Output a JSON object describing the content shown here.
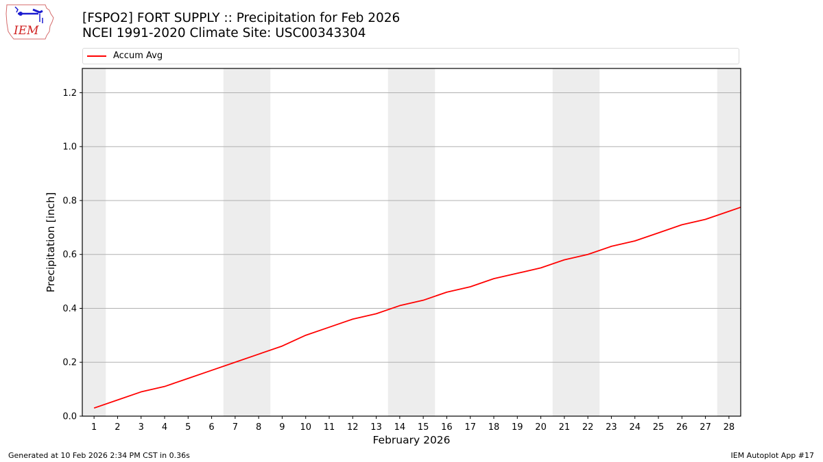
{
  "header": {
    "title_line1": "[FSPO2] FORT SUPPLY :: Precipitation for Feb 2026",
    "title_line2": "NCEI 1991-2020 Climate Site: USC00343304",
    "logo_text": "IEM"
  },
  "legend": {
    "items": [
      {
        "label": "Accum Avg",
        "color": "#ff0000"
      }
    ]
  },
  "footer": {
    "generated": "Generated at 10 Feb 2026 2:34 PM CST in 0.36s",
    "app": "IEM Autoplot App #17"
  },
  "colors": {
    "line": "#ff0000",
    "weekend_shade": "#ededed",
    "grid": "#b0b0b0",
    "axis": "#000000"
  },
  "chart_data": {
    "type": "line",
    "title": "[FSPO2] FORT SUPPLY :: Precipitation for Feb 2026",
    "subtitle": "NCEI 1991-2020 Climate Site: USC00343304",
    "xlabel": "February 2026",
    "ylabel": "Precipitation [inch]",
    "x": [
      1,
      2,
      3,
      4,
      5,
      6,
      7,
      8,
      9,
      10,
      11,
      12,
      13,
      14,
      15,
      16,
      17,
      18,
      19,
      20,
      21,
      22,
      23,
      24,
      25,
      26,
      27,
      28
    ],
    "series": [
      {
        "name": "Accum Avg",
        "color": "#ff0000",
        "values": [
          0.03,
          0.06,
          0.09,
          0.11,
          0.14,
          0.17,
          0.2,
          0.23,
          0.26,
          0.3,
          0.33,
          0.36,
          0.38,
          0.41,
          0.43,
          0.46,
          0.48,
          0.51,
          0.53,
          0.55,
          0.58,
          0.6,
          0.63,
          0.65,
          0.68,
          0.71,
          0.73,
          0.76
        ],
        "end_value_at_28_5": 0.775
      }
    ],
    "xlim": [
      0.5,
      28.5
    ],
    "ylim": [
      0,
      1.29
    ],
    "xticks": [
      "1",
      "2",
      "3",
      "4",
      "5",
      "6",
      "7",
      "8",
      "9",
      "10",
      "11",
      "12",
      "13",
      "14",
      "15",
      "16",
      "17",
      "18",
      "19",
      "20",
      "21",
      "22",
      "23",
      "24",
      "25",
      "26",
      "27",
      "28"
    ],
    "yticks": [
      {
        "value": 0.0,
        "label": "0.0"
      },
      {
        "value": 0.2,
        "label": "0.2"
      },
      {
        "value": 0.4,
        "label": "0.4"
      },
      {
        "value": 0.6,
        "label": "0.6"
      },
      {
        "value": 0.8,
        "label": "0.8"
      },
      {
        "value": 1.0,
        "label": "1.0"
      },
      {
        "value": 1.2,
        "label": "1.2"
      }
    ],
    "grid": "y",
    "weekend_bands": [
      [
        0.5,
        1.5
      ],
      [
        6.5,
        8.5
      ],
      [
        13.5,
        15.5
      ],
      [
        20.5,
        22.5
      ],
      [
        27.5,
        28.5
      ]
    ],
    "legend_position": "top, above plot"
  }
}
